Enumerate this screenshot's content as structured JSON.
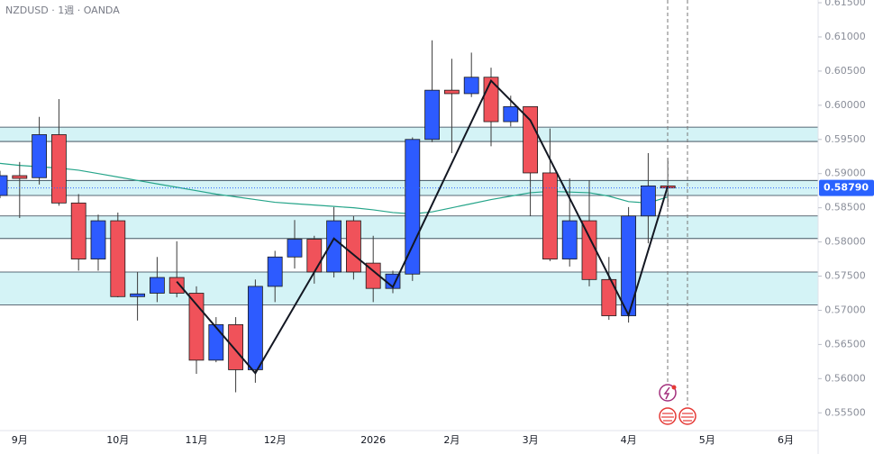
{
  "chart_data": {
    "type": "candlestick",
    "title": "NZDUSD · 1週 · OANDA",
    "open": [
      0.5868,
      0.5897,
      0.5894,
      0.5957,
      0.5857,
      0.5775,
      0.5831,
      0.572,
      0.5725,
      0.5748,
      0.5725,
      0.5627,
      0.5679,
      0.5613,
      0.5735,
      0.5778,
      0.5804,
      0.5756,
      0.5831,
      0.5769,
      0.5732,
      0.5753,
      0.595,
      0.6022,
      0.6017,
      0.6041,
      0.5976,
      0.5998,
      0.5901,
      0.5775,
      0.5831,
      0.5745,
      0.5692,
      0.5838,
      0.5882
    ],
    "high": [
      0.5904,
      0.5917,
      0.5983,
      0.6009,
      0.587,
      0.584,
      0.5843,
      0.5756,
      0.5778,
      0.5801,
      0.5735,
      0.569,
      0.569,
      0.5745,
      0.5787,
      0.5832,
      0.5809,
      0.5851,
      0.5838,
      0.5809,
      0.5758,
      0.5953,
      0.6095,
      0.6068,
      0.6077,
      0.6055,
      0.6014,
      0.5998,
      0.5966,
      0.5893,
      0.589,
      0.5778,
      0.5851,
      0.593,
      0.5923
    ],
    "low": [
      0.5864,
      0.5835,
      0.5884,
      0.5853,
      0.5758,
      0.5758,
      0.5719,
      0.5685,
      0.5712,
      0.5719,
      0.5607,
      0.5624,
      0.558,
      0.5594,
      0.5712,
      0.5761,
      0.5739,
      0.5748,
      0.5745,
      0.5712,
      0.5725,
      0.5743,
      0.5946,
      0.593,
      0.6012,
      0.594,
      0.5969,
      0.5838,
      0.5772,
      0.5764,
      0.5735,
      0.5686,
      0.5682,
      0.5798,
      0.5851
    ],
    "close": [
      0.5897,
      0.5893,
      0.5957,
      0.5857,
      0.5775,
      0.5831,
      0.572,
      0.5724,
      0.5748,
      0.5725,
      0.5627,
      0.5679,
      0.5613,
      0.5735,
      0.5778,
      0.5804,
      0.5756,
      0.5831,
      0.5756,
      0.5732,
      0.5753,
      0.595,
      0.6022,
      0.6017,
      0.6041,
      0.5976,
      0.5998,
      0.5901,
      0.5775,
      0.5831,
      0.5745,
      0.5692,
      0.5838,
      0.5882,
      0.5879
    ],
    "up_color": "#2d5bff",
    "down_color": "#f0525a",
    "ma": {
      "color": "#26a58a",
      "values": [
        0.5915,
        0.5912,
        0.591,
        0.5908,
        0.5905,
        0.59,
        0.5895,
        0.589,
        0.5885,
        0.588,
        0.5875,
        0.587,
        0.5866,
        0.5862,
        0.5858,
        0.5856,
        0.5854,
        0.5852,
        0.585,
        0.5847,
        0.5843,
        0.5841,
        0.5844,
        0.585,
        0.5856,
        0.5862,
        0.5867,
        0.5872,
        0.5874,
        0.5873,
        0.5872,
        0.5867,
        0.5859,
        0.5857,
        0.5866
      ]
    },
    "zigzag": {
      "color": "#131722",
      "x": [
        9,
        13,
        17,
        20,
        25,
        27,
        32,
        34
      ],
      "values": [
        0.5742,
        0.5608,
        0.5805,
        0.5734,
        0.6036,
        0.5978,
        0.5693,
        0.5882
      ]
    },
    "zones": [
      [
        0.5947,
        0.5968
      ],
      [
        0.5868,
        0.589
      ],
      [
        0.5805,
        0.5838
      ],
      [
        0.5708,
        0.5756
      ]
    ],
    "zone_color": "#d4f3f6",
    "last_price": {
      "value": 0.5879,
      "label": "0.58790"
    },
    "last_color": "#2962ff",
    "ylim": [
      0.5524,
      0.6154
    ],
    "yticks": [
      {
        "value": 0.555,
        "label": "0.55500"
      },
      {
        "value": 0.56,
        "label": "0.56000"
      },
      {
        "value": 0.565,
        "label": "0.56500"
      },
      {
        "value": 0.57,
        "label": "0.57000"
      },
      {
        "value": 0.575,
        "label": "0.57500"
      },
      {
        "value": 0.58,
        "label": "0.58000"
      },
      {
        "value": 0.585,
        "label": "0.58500"
      },
      {
        "value": 0.59,
        "label": "0.59000"
      },
      {
        "value": 0.595,
        "label": "0.59500"
      },
      {
        "value": 0.6,
        "label": "0.60000"
      },
      {
        "value": 0.605,
        "label": "0.60500"
      },
      {
        "value": 0.61,
        "label": "0.61000"
      },
      {
        "value": 0.615,
        "label": "0.61500"
      }
    ],
    "xticks": [
      {
        "value": 1,
        "label": "9月"
      },
      {
        "value": 6,
        "label": "10月"
      },
      {
        "value": 10,
        "label": "11月"
      },
      {
        "value": 14,
        "label": "12月"
      },
      {
        "value": 19,
        "label": "2026"
      },
      {
        "value": 23,
        "label": "2月"
      },
      {
        "value": 27,
        "label": "3月"
      },
      {
        "value": 32,
        "label": "4月"
      },
      {
        "value": 36,
        "label": "5月"
      },
      {
        "value": 40,
        "label": "6月"
      }
    ]
  }
}
